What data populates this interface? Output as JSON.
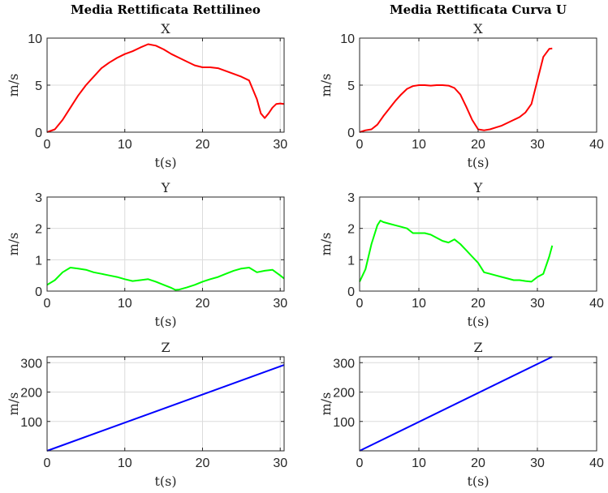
{
  "chart_data": [
    {
      "type": "line",
      "col_title": "Media Rettificata Rettilineo",
      "title": "X",
      "xlabel": "t(s)",
      "ylabel": "m/s",
      "xlim": [
        0,
        30.5
      ],
      "ylim": [
        0,
        10
      ],
      "xticks": [
        0,
        10,
        20,
        30
      ],
      "yticks": [
        0,
        5,
        10
      ],
      "grid": true,
      "color": "#ff0000",
      "x": [
        0,
        1,
        2,
        3,
        4,
        5,
        6,
        7,
        8,
        9,
        10,
        11,
        12,
        13,
        14,
        15,
        16,
        17,
        18,
        19,
        20,
        21,
        22,
        23,
        24,
        25,
        26,
        27,
        27.5,
        28,
        28.5,
        29,
        29.5,
        30,
        30.5
      ],
      "y": [
        0.0,
        0.3,
        1.3,
        2.6,
        3.9,
        5.0,
        5.9,
        6.8,
        7.4,
        7.9,
        8.3,
        8.6,
        9.0,
        9.35,
        9.2,
        8.8,
        8.3,
        7.9,
        7.5,
        7.1,
        6.9,
        6.9,
        6.8,
        6.5,
        6.2,
        5.9,
        5.5,
        3.5,
        2.0,
        1.5,
        2.0,
        2.6,
        3.0,
        3.05,
        3.0
      ]
    },
    {
      "type": "line",
      "col_title": "Media Rettificata Curva U",
      "title": "X",
      "xlabel": "t(s)",
      "ylabel": "m/s",
      "xlim": [
        0,
        40
      ],
      "ylim": [
        0,
        10
      ],
      "xticks": [
        0,
        10,
        20,
        30,
        40
      ],
      "yticks": [
        0,
        5,
        10
      ],
      "grid": true,
      "color": "#ff0000",
      "x": [
        0,
        1,
        2,
        3,
        4,
        5,
        6,
        7,
        8,
        9,
        10,
        11,
        12,
        13,
        14,
        15,
        16,
        17,
        18,
        19,
        20,
        21,
        22,
        23,
        24,
        25,
        26,
        27,
        28,
        29,
        30,
        31,
        32,
        32.5
      ],
      "y": [
        0.0,
        0.2,
        0.3,
        0.8,
        1.7,
        2.5,
        3.3,
        4.0,
        4.6,
        4.9,
        5.0,
        5.0,
        4.95,
        5.0,
        5.0,
        4.95,
        4.7,
        4.0,
        2.7,
        1.3,
        0.3,
        0.2,
        0.3,
        0.5,
        0.7,
        1.0,
        1.3,
        1.6,
        2.1,
        3.0,
        5.5,
        8.0,
        8.85,
        8.9
      ]
    },
    {
      "type": "line",
      "title": "Y",
      "xlabel": "t(s)",
      "ylabel": "m/s",
      "xlim": [
        0,
        30.5
      ],
      "ylim": [
        0,
        3
      ],
      "xticks": [
        0,
        10,
        20,
        30
      ],
      "yticks": [
        0,
        1,
        2,
        3
      ],
      "grid": true,
      "color": "#00ff00",
      "x": [
        0,
        1,
        2,
        3,
        4,
        5,
        6,
        7,
        8,
        9,
        10,
        11,
        12,
        13,
        14,
        15,
        16,
        16.5,
        17,
        18,
        19,
        20,
        21,
        22,
        23,
        24,
        25,
        26,
        27,
        28,
        29,
        30,
        30.5
      ],
      "y": [
        0.2,
        0.35,
        0.6,
        0.75,
        0.72,
        0.68,
        0.6,
        0.55,
        0.5,
        0.45,
        0.38,
        0.32,
        0.35,
        0.38,
        0.3,
        0.2,
        0.1,
        0.04,
        0.05,
        0.12,
        0.2,
        0.3,
        0.38,
        0.45,
        0.55,
        0.65,
        0.72,
        0.75,
        0.6,
        0.65,
        0.68,
        0.5,
        0.4
      ]
    },
    {
      "type": "line",
      "title": "Y",
      "xlabel": "t(s)",
      "ylabel": "m/s",
      "xlim": [
        0,
        40
      ],
      "ylim": [
        0,
        3
      ],
      "xticks": [
        0,
        10,
        20,
        30,
        40
      ],
      "yticks": [
        0,
        1,
        2,
        3
      ],
      "grid": true,
      "color": "#00ff00",
      "x": [
        0,
        1,
        2,
        3,
        3.5,
        4,
        5,
        6,
        7,
        8,
        9,
        10,
        11,
        12,
        13,
        14,
        15,
        16,
        17,
        18,
        19,
        20,
        21,
        22,
        23,
        24,
        25,
        26,
        27,
        28,
        29,
        30,
        31,
        32,
        32.5
      ],
      "y": [
        0.3,
        0.7,
        1.5,
        2.1,
        2.25,
        2.2,
        2.15,
        2.1,
        2.05,
        2.0,
        1.85,
        1.85,
        1.85,
        1.8,
        1.7,
        1.6,
        1.55,
        1.65,
        1.5,
        1.3,
        1.1,
        0.9,
        0.6,
        0.55,
        0.5,
        0.45,
        0.4,
        0.35,
        0.35,
        0.32,
        0.3,
        0.45,
        0.55,
        1.1,
        1.45
      ]
    },
    {
      "type": "line",
      "title": "Z",
      "xlabel": "t(s)",
      "ylabel": "m/s",
      "xlim": [
        0,
        30.5
      ],
      "ylim": [
        0,
        320
      ],
      "xticks": [
        0,
        10,
        20,
        30
      ],
      "yticks": [
        100,
        200,
        300
      ],
      "grid": true,
      "color": "#0000ff",
      "x": [
        0,
        30.5
      ],
      "y": [
        0,
        292
      ]
    },
    {
      "type": "line",
      "title": "Z",
      "xlabel": "t(s)",
      "ylabel": "m/s",
      "xlim": [
        0,
        40
      ],
      "ylim": [
        0,
        320
      ],
      "xticks": [
        0,
        10,
        20,
        30,
        40
      ],
      "yticks": [
        100,
        200,
        300
      ],
      "grid": true,
      "color": "#0000ff",
      "x": [
        0,
        32.5
      ],
      "y": [
        0,
        320
      ]
    }
  ]
}
